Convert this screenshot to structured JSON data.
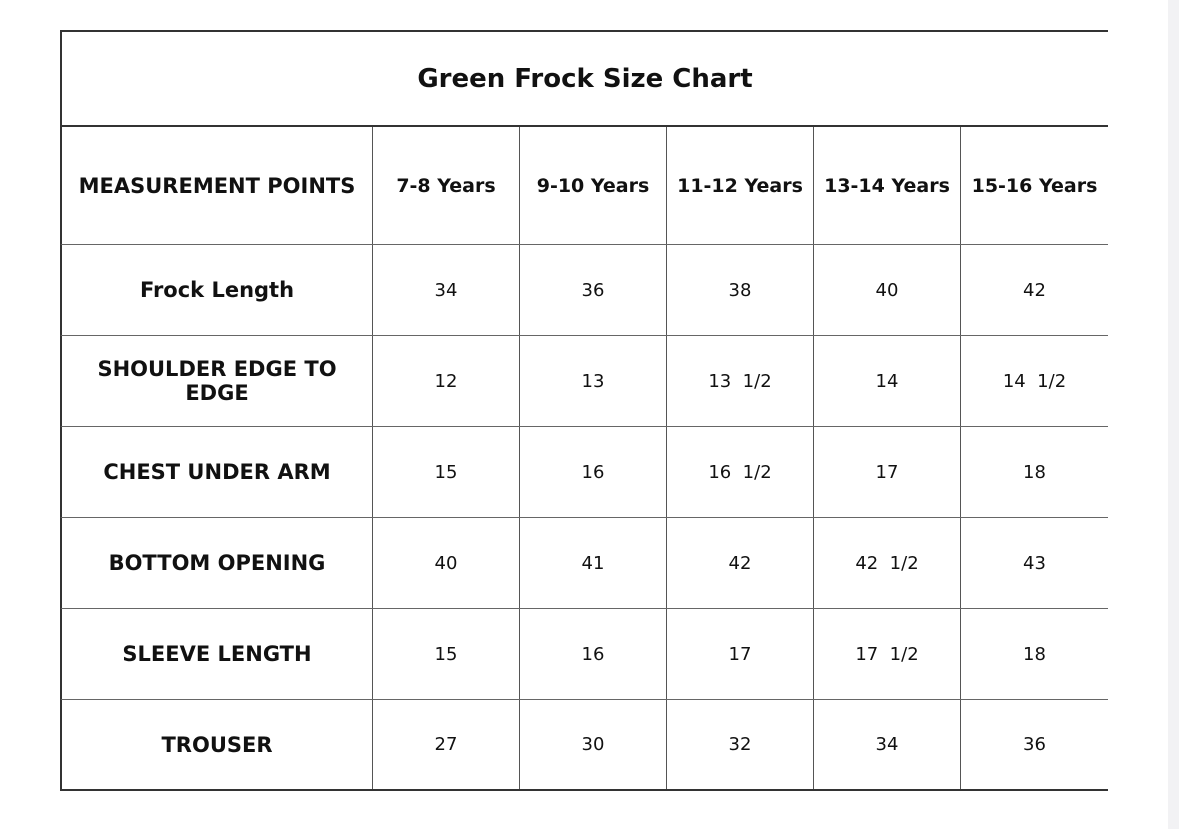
{
  "table": {
    "title": "Green Frock Size Chart",
    "header": [
      "MEASUREMENT POINTS",
      "7-8 Years",
      "9-10 Years",
      "11-12 Years",
      "13-14 Years",
      "15-16 Years"
    ],
    "rows": [
      [
        "Frock Length",
        "34",
        "36",
        "38",
        "40",
        "42"
      ],
      [
        "SHOULDER EDGE TO EDGE",
        "12",
        "13",
        "13  1/2",
        "14",
        "14  1/2"
      ],
      [
        "CHEST UNDER ARM",
        "15",
        "16",
        "16  1/2",
        "17",
        "18"
      ],
      [
        "BOTTOM OPENING",
        "40",
        "41",
        "42",
        "42  1/2",
        "43"
      ],
      [
        "SLEEVE LENGTH",
        "15",
        "16",
        "17",
        "17  1/2",
        "18"
      ],
      [
        "TROUSER",
        "27",
        "30",
        "32",
        "34",
        "36"
      ]
    ]
  }
}
